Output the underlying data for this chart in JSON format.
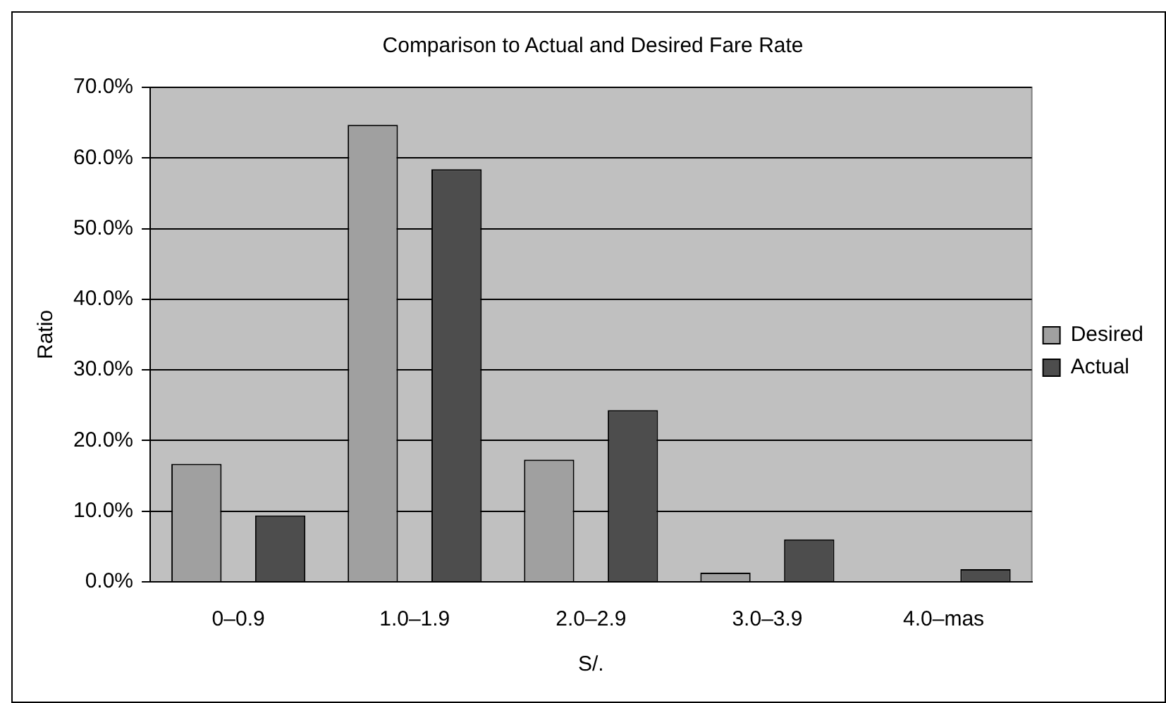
{
  "chart_data": {
    "type": "bar",
    "title": "Comparison to Actual and Desired Fare Rate",
    "xlabel": "S/.",
    "ylabel": "Ratio",
    "categories": [
      "0–0.9",
      "1.0–1.9",
      "2.0–2.9",
      "3.0–3.9",
      "4.0–mas"
    ],
    "series": [
      {
        "name": "Desired",
        "color": "#a0a0a0",
        "values": [
          16.7,
          64.7,
          17.3,
          1.3,
          0
        ]
      },
      {
        "name": "Actual",
        "color": "#4d4d4d",
        "values": [
          9.4,
          58.4,
          24.3,
          6.0,
          1.8
        ]
      }
    ],
    "ylim": [
      0,
      70
    ],
    "yticks": [
      {
        "value": 0,
        "label": "0.0%"
      },
      {
        "value": 10,
        "label": "10.0%"
      },
      {
        "value": 20,
        "label": "20.0%"
      },
      {
        "value": 30,
        "label": "30.0%"
      },
      {
        "value": 40,
        "label": "40.0%"
      },
      {
        "value": 50,
        "label": "50.0%"
      },
      {
        "value": 60,
        "label": "60.0%"
      },
      {
        "value": 70,
        "label": "70.0%"
      }
    ],
    "grid": "y",
    "legend": "right"
  }
}
